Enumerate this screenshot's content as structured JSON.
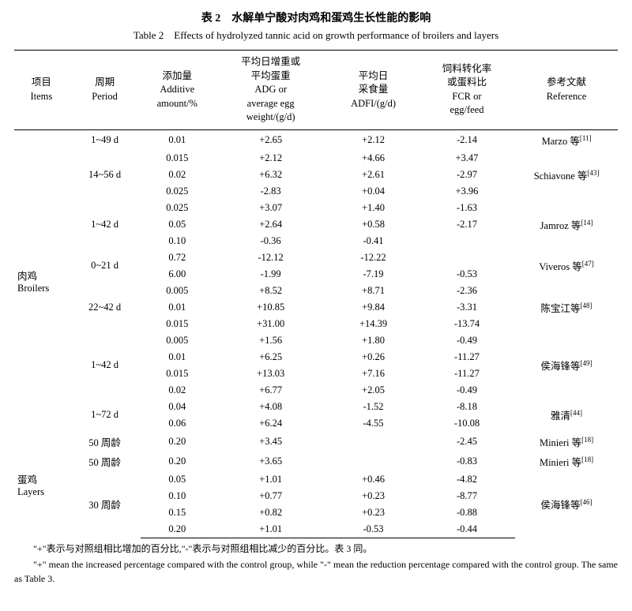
{
  "title_cn": "表 2　水解单宁酸对肉鸡和蛋鸡生长性能的影响",
  "title_en": "Table 2　Effects of hydrolyzed tannic acid on growth performance of broilers and layers",
  "headers": {
    "items_cn": "项目",
    "items_en": "Items",
    "period_cn": "周期",
    "period_en": "Period",
    "amount_cn": "添加量",
    "amount_en": "Additive",
    "amount_en2": "amount/%",
    "adg_cn1": "平均日增重或",
    "adg_cn2": "平均蛋重",
    "adg_en1": "ADG or",
    "adg_en2": "average egg",
    "adg_en3": "weight/(g/d)",
    "adfi_cn1": "平均日",
    "adfi_cn2": "采食量",
    "adfi_en": "ADFI/(g/d)",
    "fcr_cn1": "饲料转化率",
    "fcr_cn2": "或蛋料比",
    "fcr_en1": "FCR or",
    "fcr_en2": "egg/feed",
    "ref_cn": "参考文献",
    "ref_en": "Reference"
  },
  "groups": [
    {
      "items_cn": "肉鸡",
      "items_en": "Broilers",
      "blocks": [
        {
          "period": "1~49 d",
          "ref": "Marzo 等",
          "refnum": "[11]",
          "rows": [
            {
              "amt": "0.01",
              "adg": "+2.65",
              "adfi": "+2.12",
              "fcr": "-2.14"
            }
          ]
        },
        {
          "period": "14~56 d",
          "ref": "Schiavone 等",
          "refnum": "[43]",
          "rows": [
            {
              "amt": "0.015",
              "adg": "+2.12",
              "adfi": "+4.66",
              "fcr": "+3.47"
            },
            {
              "amt": "0.02",
              "adg": "+6.32",
              "adfi": "+2.61",
              "fcr": "-2.97"
            },
            {
              "amt": "0.025",
              "adg": "-2.83",
              "adfi": "+0.04",
              "fcr": "+3.96"
            }
          ]
        },
        {
          "period": "1~42 d",
          "ref": "Jamroz 等",
          "refnum": "[14]",
          "rows": [
            {
              "amt": "0.025",
              "adg": "+3.07",
              "adfi": "+1.40",
              "fcr": "-1.63"
            },
            {
              "amt": "0.05",
              "adg": "+2.64",
              "adfi": "+0.58",
              "fcr": "-2.17"
            },
            {
              "amt": "0.10",
              "adg": "-0.36",
              "adfi": "-0.41",
              "fcr": ""
            }
          ]
        },
        {
          "period": "0~21 d",
          "ref": "Viveros 等",
          "refnum": "[47]",
          "rows": [
            {
              "amt": "0.72",
              "adg": "-12.12",
              "adfi": "-12.22",
              "fcr": ""
            },
            {
              "amt": "6.00",
              "adg": "-1.99",
              "adfi": "-7.19",
              "fcr": "-0.53"
            }
          ]
        },
        {
          "period": "22~42 d",
          "ref": "陈宝江等",
          "refnum": "[48]",
          "rows": [
            {
              "amt": "0.005",
              "adg": "+8.52",
              "adfi": "+8.71",
              "fcr": "-2.36"
            },
            {
              "amt": "0.01",
              "adg": "+10.85",
              "adfi": "+9.84",
              "fcr": "-3.31"
            },
            {
              "amt": "0.015",
              "adg": "+31.00",
              "adfi": "+14.39",
              "fcr": "-13.74"
            }
          ]
        },
        {
          "period": "1~42 d",
          "ref": "侯海锋等",
          "refnum": "[49]",
          "rows": [
            {
              "amt": "0.005",
              "adg": "+1.56",
              "adfi": "+1.80",
              "fcr": "-0.49"
            },
            {
              "amt": "0.01",
              "adg": "+6.25",
              "adfi": "+0.26",
              "fcr": "-11.27"
            },
            {
              "amt": "0.015",
              "adg": "+13.03",
              "adfi": "+7.16",
              "fcr": "-11.27"
            },
            {
              "amt": "0.02",
              "adg": "+6.77",
              "adfi": "+2.05",
              "fcr": "-0.49"
            }
          ]
        },
        {
          "period": "1~72 d",
          "ref": "雅清",
          "refnum": "[44]",
          "rows": [
            {
              "amt": "0.04",
              "adg": "+4.08",
              "adfi": "-1.52",
              "fcr": "-8.18"
            },
            {
              "amt": "0.06",
              "adg": "+6.24",
              "adfi": "-4.55",
              "fcr": "-10.08"
            }
          ]
        }
      ]
    },
    {
      "items_cn": "蛋鸡",
      "items_en": "Layers",
      "blocks": [
        {
          "period": "50 周龄",
          "ref": "Minieri 等",
          "refnum": "[18]",
          "rows": [
            {
              "amt": "0.20",
              "adg": "+3.45",
              "adfi": "",
              "fcr": "-2.45"
            }
          ]
        },
        {
          "period": "50 周龄",
          "ref": "Minieri 等",
          "refnum": "[18]",
          "rows": [
            {
              "amt": "0.20",
              "adg": "+3.65",
              "adfi": "",
              "fcr": "-0.83"
            }
          ]
        },
        {
          "period": "30 周龄",
          "ref": "侯海锋等",
          "refnum": "[46]",
          "rows": [
            {
              "amt": "0.05",
              "adg": "+1.01",
              "adfi": "+0.46",
              "fcr": "-4.82"
            },
            {
              "amt": "0.10",
              "adg": "+0.77",
              "adfi": "+0.23",
              "fcr": "-8.77"
            },
            {
              "amt": "0.15",
              "adg": "+0.82",
              "adfi": "+0.23",
              "fcr": "-0.88"
            },
            {
              "amt": "0.20",
              "adg": "+1.01",
              "adfi": "-0.53",
              "fcr": "-0.44"
            }
          ]
        }
      ]
    }
  ],
  "footnote_cn": "\"+\"表示与对照组相比增加的百分比,\"-\"表示与对照组相比减少的百分比。表 3 同。",
  "footnote_en": "\"+\" mean the increased percentage compared with the control group, while \"-\" mean the reduction percentage compared with the control group. The same as Table 3."
}
